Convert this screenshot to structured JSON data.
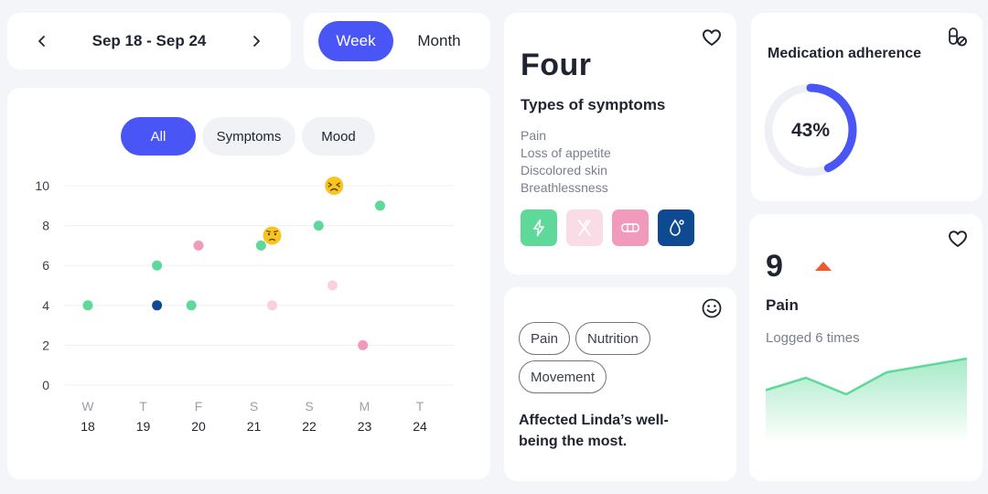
{
  "header": {
    "date_range": "Sep 18 - Sep 24",
    "prev_icon": "chevron-left-icon",
    "next_icon": "chevron-right-icon"
  },
  "period_toggle": {
    "week_label": "Week",
    "month_label": "Month",
    "selected": "Week"
  },
  "filters": {
    "all": "All",
    "symptoms": "Symptoms",
    "mood": "Mood",
    "selected": "All"
  },
  "chart_data": {
    "type": "scatter",
    "categories": [
      {
        "day": "W",
        "date": "18"
      },
      {
        "day": "T",
        "date": "19"
      },
      {
        "day": "F",
        "date": "20"
      },
      {
        "day": "S",
        "date": "21"
      },
      {
        "day": "S",
        "date": "22"
      },
      {
        "day": "M",
        "date": "23"
      },
      {
        "day": "T",
        "date": "24"
      }
    ],
    "ylim": [
      0,
      10
    ],
    "yticks": [
      0,
      2,
      4,
      6,
      8,
      10
    ],
    "grid": true,
    "colors": {
      "green": "#5fd99a",
      "pink": "#f29abb",
      "light_pink": "#fad0dc",
      "navy": "#0d4a91",
      "mood": "#f7c520"
    },
    "points": [
      {
        "x": 18.0,
        "y": 4,
        "color": "green"
      },
      {
        "x": 19.25,
        "y": 6,
        "color": "green"
      },
      {
        "x": 19.25,
        "y": 4,
        "color": "navy"
      },
      {
        "x": 19.87,
        "y": 4,
        "color": "green"
      },
      {
        "x": 20.0,
        "y": 7,
        "color": "pink"
      },
      {
        "x": 21.13,
        "y": 7,
        "color": "green"
      },
      {
        "x": 21.33,
        "y": 4,
        "color": "light_pink"
      },
      {
        "x": 22.17,
        "y": 8,
        "color": "green"
      },
      {
        "x": 22.42,
        "y": 5,
        "color": "light_pink"
      },
      {
        "x": 22.97,
        "y": 2,
        "color": "pink"
      },
      {
        "x": 23.28,
        "y": 9,
        "color": "green"
      }
    ],
    "mood_points": [
      {
        "x": 21.33,
        "y": 7.5,
        "mood": "worried-face-icon"
      },
      {
        "x": 22.45,
        "y": 10,
        "mood": "tired-face-icon"
      }
    ]
  },
  "symptom_types": {
    "count_word": "Four",
    "subtitle": "Types of symptoms",
    "items": [
      "Pain",
      "Loss of appetite",
      "Discolored skin",
      "Breathlessness"
    ],
    "icons": [
      {
        "name": "lightning-icon",
        "bg": "#5fd99a",
        "fg": "#ffffff"
      },
      {
        "name": "fork-knife-icon",
        "bg": "#fadce6",
        "fg": "#ffffff"
      },
      {
        "name": "bandage-icon",
        "bg": "#f29abb",
        "fg": "#ffffff"
      },
      {
        "name": "drop-icon",
        "bg": "#0d4a91",
        "fg": "#ffffff"
      }
    ]
  },
  "affected": {
    "tags": [
      "Pain",
      "Nutrition",
      "Movement"
    ],
    "text": "Affected Linda’s well-being the most."
  },
  "medication": {
    "title": "Medication adherence",
    "percent_label": "43%",
    "percent": 43,
    "accent": "#4a55f5"
  },
  "pain": {
    "count": "9",
    "trend": "up",
    "name": "Pain",
    "logged": "Logged 6 times",
    "trend_values": [
      2.5,
      3.4,
      2.2,
      3.8,
      4.3,
      4.8
    ],
    "color": "#5fd99a"
  }
}
